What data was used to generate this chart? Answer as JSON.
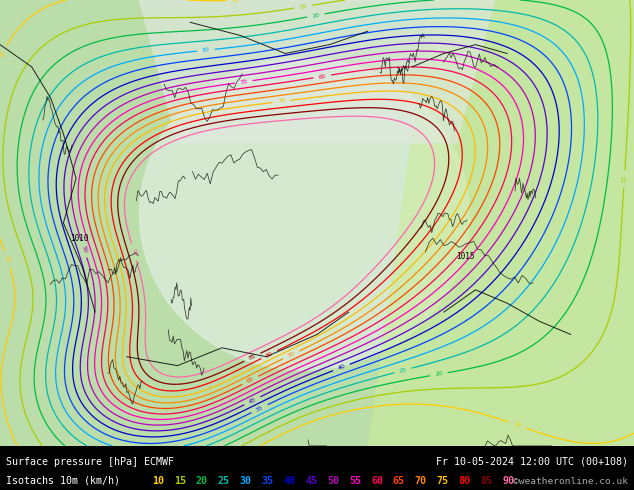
{
  "title_line1": "Surface pressure [hPa] ECMWF",
  "title_line1_right": "Fr 10-05-2024 12:00 UTC (00+108)",
  "title_line2_left": "Isotachs 10m (km/h)",
  "title_line2_right": "©weatheronline.co.uk",
  "legend_labels_colors": [
    [
      "10",
      "#ffcc00"
    ],
    [
      "15",
      "#aacc00"
    ],
    [
      "20",
      "#00bb44"
    ],
    [
      "25",
      "#00bbaa"
    ],
    [
      "30",
      "#00aaff"
    ],
    [
      "35",
      "#0044ff"
    ],
    [
      "40",
      "#0000cc"
    ],
    [
      "45",
      "#5500cc"
    ],
    [
      "50",
      "#bb00bb"
    ],
    [
      "55",
      "#ff00bb"
    ],
    [
      "60",
      "#ff0055"
    ],
    [
      "65",
      "#ff4400"
    ],
    [
      "70",
      "#ff8800"
    ],
    [
      "75",
      "#ffbb00"
    ],
    [
      "80",
      "#ff0000"
    ],
    [
      "85",
      "#880000"
    ],
    [
      "90",
      "#ff66aa"
    ]
  ],
  "contour_levels": [
    10,
    15,
    20,
    25,
    30,
    35,
    40,
    45,
    50,
    55,
    60,
    65,
    70,
    75,
    80,
    85,
    90
  ],
  "contour_colors": [
    "#ffcc00",
    "#aacc00",
    "#00bb44",
    "#00bbaa",
    "#00aaff",
    "#0044ff",
    "#0000cc",
    "#5500cc",
    "#bb00bb",
    "#ff00bb",
    "#ff0055",
    "#ff4400",
    "#ff8800",
    "#ffbb00",
    "#ff0000",
    "#880000",
    "#ff66aa"
  ],
  "figsize": [
    6.34,
    4.9
  ],
  "dpi": 100
}
